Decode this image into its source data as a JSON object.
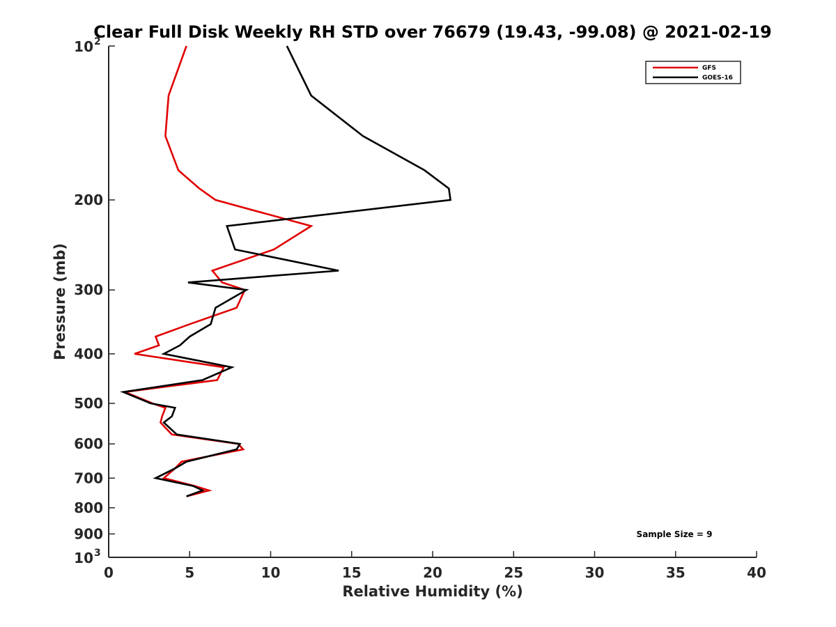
{
  "chart_data": {
    "type": "line",
    "title": "Clear Full Disk Weekly RH STD over 76679 (19.43, -99.08) @ 2021-02-19",
    "xlabel": "Relative Humidity (%)",
    "ylabel": "Pressure (mb)",
    "xlim": [
      0,
      40
    ],
    "ylim": [
      1000,
      100
    ],
    "y_scale": "log",
    "y_reversed": true,
    "grid": false,
    "legend_position": "top-right",
    "x_ticks": [
      "0",
      "5",
      "10",
      "15",
      "20",
      "25",
      "30",
      "35",
      "40"
    ],
    "x_tick_values": [
      0,
      5,
      10,
      15,
      20,
      25,
      30,
      35,
      40
    ],
    "y_ticks": [
      {
        "value": 100,
        "base": "10",
        "exp": "2"
      },
      {
        "value": 200,
        "label": "200"
      },
      {
        "value": 300,
        "label": "300"
      },
      {
        "value": 400,
        "label": "400"
      },
      {
        "value": 500,
        "label": "500"
      },
      {
        "value": 600,
        "label": "600"
      },
      {
        "value": 700,
        "label": "700"
      },
      {
        "value": 800,
        "label": "800"
      },
      {
        "value": 900,
        "label": "900"
      },
      {
        "value": 1000,
        "base": "10",
        "exp": "3"
      }
    ],
    "annotation": "Sample Size = 9",
    "series": [
      {
        "name": "GFS",
        "color": "#e00000",
        "points": [
          [
            4.8,
            100
          ],
          [
            3.7,
            125
          ],
          [
            3.5,
            150
          ],
          [
            4.3,
            175
          ],
          [
            5.6,
            190
          ],
          [
            6.6,
            200
          ],
          [
            12.5,
            225
          ],
          [
            10.2,
            250
          ],
          [
            6.4,
            275
          ],
          [
            7.0,
            290
          ],
          [
            8.4,
            300
          ],
          [
            7.9,
            325
          ],
          [
            5.0,
            350
          ],
          [
            2.9,
            370
          ],
          [
            3.1,
            385
          ],
          [
            1.6,
            400
          ],
          [
            7.1,
            425
          ],
          [
            6.7,
            450
          ],
          [
            1.0,
            475
          ],
          [
            2.7,
            500
          ],
          [
            3.5,
            510
          ],
          [
            3.3,
            530
          ],
          [
            3.2,
            545
          ],
          [
            3.9,
            575
          ],
          [
            8.0,
            600
          ],
          [
            8.3,
            615
          ],
          [
            4.5,
            650
          ],
          [
            4.1,
            670
          ],
          [
            3.4,
            700
          ],
          [
            5.3,
            725
          ],
          [
            6.2,
            740
          ],
          [
            4.8,
            760
          ]
        ]
      },
      {
        "name": "GOES-16",
        "color": "#000000",
        "points": [
          [
            11.0,
            100
          ],
          [
            12.5,
            125
          ],
          [
            15.7,
            150
          ],
          [
            19.5,
            175
          ],
          [
            21.0,
            190
          ],
          [
            21.1,
            200
          ],
          [
            7.3,
            225
          ],
          [
            7.8,
            250
          ],
          [
            14.2,
            275
          ],
          [
            4.9,
            290
          ],
          [
            8.5,
            300
          ],
          [
            6.6,
            325
          ],
          [
            6.3,
            350
          ],
          [
            5.0,
            370
          ],
          [
            4.4,
            385
          ],
          [
            3.4,
            400
          ],
          [
            7.6,
            425
          ],
          [
            5.8,
            450
          ],
          [
            0.9,
            475
          ],
          [
            2.6,
            500
          ],
          [
            4.1,
            510
          ],
          [
            3.9,
            530
          ],
          [
            3.4,
            545
          ],
          [
            4.2,
            575
          ],
          [
            8.1,
            600
          ],
          [
            7.9,
            615
          ],
          [
            4.8,
            650
          ],
          [
            4.1,
            670
          ],
          [
            2.9,
            700
          ],
          [
            5.2,
            725
          ],
          [
            5.8,
            740
          ],
          [
            4.8,
            760
          ]
        ]
      }
    ]
  }
}
